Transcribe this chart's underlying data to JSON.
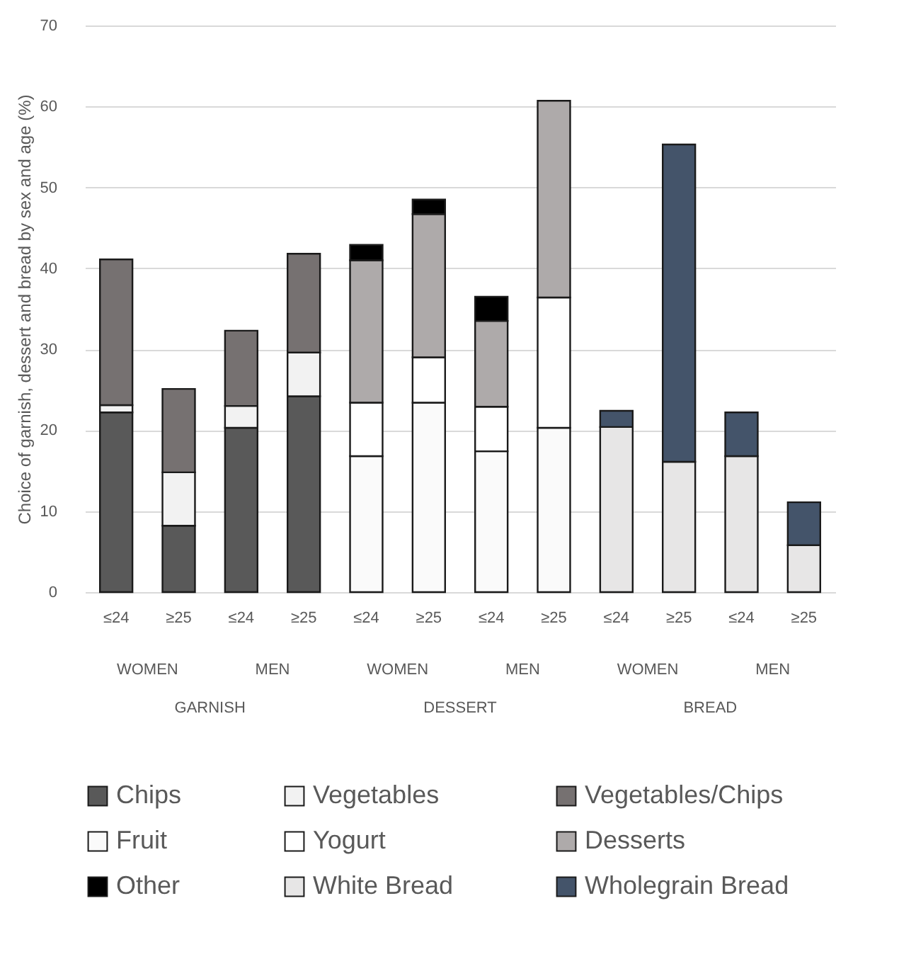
{
  "chart_data": {
    "type": "bar",
    "stacked": true,
    "ylabel": "Choice of garnish,  dessert and bread by sex and age (%)",
    "categories": [
      "≤24",
      "≥25",
      "≤24",
      "≥25",
      "≤24",
      "≥25",
      "≤24",
      "≥25",
      "≤24",
      "≥25",
      "≤24",
      "≥25"
    ],
    "annotations": [
      "WOMEN",
      "MEN",
      "WOMEN",
      "MEN",
      "WOMEN",
      "MEN",
      "GARNISH",
      "DESSERT",
      "BREAD"
    ],
    "series": [
      {
        "name": "Chips",
        "color": "#595959",
        "values": [
          22.2,
          8.2,
          20.3,
          24.2,
          null,
          null,
          null,
          null,
          null,
          null,
          null,
          null
        ]
      },
      {
        "name": "Vegetables",
        "color": "#f2f2f2",
        "values": [
          0.9,
          6.6,
          2.7,
          5.4,
          null,
          null,
          null,
          null,
          null,
          null,
          null,
          null
        ]
      },
      {
        "name": "Vegetables/Chips",
        "color": "#767171",
        "values": [
          18.0,
          10.3,
          9.3,
          12.2,
          null,
          null,
          null,
          null,
          null,
          null,
          null,
          null
        ]
      },
      {
        "name": "Fruit",
        "color": "#fafafa",
        "values": [
          null,
          null,
          null,
          null,
          16.8,
          23.4,
          17.4,
          20.3,
          null,
          null,
          null,
          null
        ]
      },
      {
        "name": "Yogurt",
        "color": "#ffffff",
        "values": [
          null,
          null,
          null,
          null,
          6.6,
          5.6,
          5.5,
          16.1,
          null,
          null,
          null,
          null
        ]
      },
      {
        "name": "Desserts",
        "color": "#aeaaaa",
        "values": [
          null,
          null,
          null,
          null,
          17.6,
          17.7,
          10.6,
          24.3,
          null,
          null,
          null,
          null
        ]
      },
      {
        "name": "Other",
        "color": "#000000",
        "values": [
          null,
          null,
          null,
          null,
          1.9,
          1.8,
          3.0,
          null,
          null,
          null,
          null,
          null
        ]
      },
      {
        "name": "White Bread",
        "color": "#e7e6e6",
        "values": [
          null,
          null,
          null,
          null,
          null,
          null,
          null,
          null,
          20.4,
          16.1,
          16.8,
          5.8
        ]
      },
      {
        "name": "Wholegrain Bread",
        "color": "#44546a",
        "values": [
          null,
          null,
          null,
          null,
          null,
          null,
          null,
          null,
          2.0,
          39.2,
          5.4,
          5.3
        ]
      }
    ],
    "ylim": [
      0,
      70
    ],
    "yticks": [
      0,
      10,
      20,
      30,
      40,
      50,
      60,
      70
    ],
    "grid": "y",
    "legend": "bottom"
  }
}
